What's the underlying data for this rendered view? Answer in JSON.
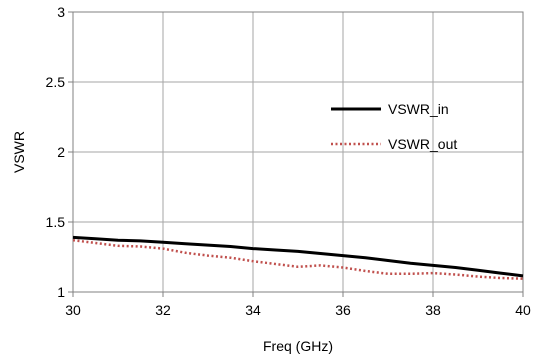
{
  "chart_data": {
    "type": "line",
    "title": "",
    "xlabel": "Freq (GHz)",
    "ylabel": "VSWR",
    "xlim": [
      30,
      40
    ],
    "ylim": [
      1,
      3
    ],
    "xticks": [
      "30",
      "32",
      "34",
      "36",
      "38",
      "40"
    ],
    "yticks": [
      "1",
      "1.5",
      "2",
      "2.5",
      "3"
    ],
    "grid": true,
    "legend_position": "right",
    "series": [
      {
        "name": "VSWR_in",
        "color": "#000000",
        "style": "solid",
        "x": [
          30,
          30.5,
          31,
          31.5,
          32,
          32.5,
          33,
          33.5,
          34,
          34.5,
          35,
          35.5,
          36,
          36.5,
          37,
          37.5,
          38,
          38.5,
          39,
          39.5,
          40
        ],
        "y": [
          1.39,
          1.38,
          1.37,
          1.365,
          1.355,
          1.345,
          1.335,
          1.325,
          1.31,
          1.3,
          1.29,
          1.275,
          1.26,
          1.245,
          1.225,
          1.205,
          1.19,
          1.175,
          1.155,
          1.135,
          1.115
        ]
      },
      {
        "name": "VSWR_out",
        "color": "#c0504d",
        "style": "dotted",
        "x": [
          30,
          30.5,
          31,
          31.5,
          32,
          32.5,
          33,
          33.5,
          34,
          34.5,
          35,
          35.5,
          36,
          36.5,
          37,
          37.5,
          38,
          38.5,
          39,
          39.5,
          40
        ],
        "y": [
          1.37,
          1.35,
          1.33,
          1.325,
          1.31,
          1.28,
          1.26,
          1.245,
          1.22,
          1.2,
          1.18,
          1.19,
          1.175,
          1.15,
          1.13,
          1.13,
          1.135,
          1.125,
          1.11,
          1.1,
          1.095
        ]
      }
    ]
  }
}
